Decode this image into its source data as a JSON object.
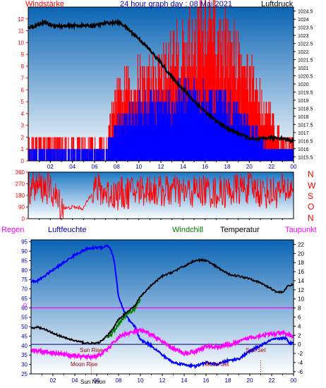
{
  "colors": {
    "wind_max": "#ff0000",
    "wind_avg": "#0000ff",
    "pressure": "#000000",
    "wind_dir": "#ff0000",
    "humidity": "#0000ff",
    "temperature": "#000000",
    "windchill": "#008000",
    "dewpoint": "#ff00ff",
    "frost_line": "#000080",
    "rain_line": "#ff00ff",
    "panel_top": "#0a64b4",
    "panel_bottom": "#ffffff"
  },
  "header": {
    "windstaerke": "Windstärke",
    "title": "24 hour graph day : 08 Mai 2021",
    "luftdruck": "Luftdruck"
  },
  "labels": {
    "regen": "Regen",
    "luftfeuchte": "Luftfeuchte",
    "windchill": "Windchill",
    "temperatur": "Temperatur",
    "taupunkt": "Taupunkt",
    "rain_zero": "0"
  },
  "compass": [
    "N",
    "W",
    "S",
    "O",
    "N"
  ],
  "annotations": {
    "sun_rise": "Sun Rise",
    "moon_rise": "Moon Rise",
    "moon_set": "Moon Set",
    "sun_set": "Sun Set",
    "sun_noon": "Sun Noon"
  },
  "chart_data": [
    {
      "id": "wind-pressure",
      "type": "line",
      "x_ticks": [
        "02",
        "04",
        "06",
        "08",
        "10",
        "12",
        "14",
        "16",
        "18",
        "20",
        "22",
        "00"
      ],
      "x_range_hours": [
        0,
        24
      ],
      "y_left_ticks": [
        "0",
        "1",
        "2",
        "3",
        "4",
        "5",
        "6",
        "7",
        "8",
        "9",
        "10",
        "11",
        "12"
      ],
      "y_left_range": [
        0,
        13
      ],
      "y_right_ticks": [
        "1015.5",
        "1016",
        "1016.5",
        "1017",
        "1017.5",
        "1018",
        "1018.5",
        "1019",
        "1019.5",
        "1020",
        "1020.5",
        "1021",
        "1021.5",
        "1022",
        "1022.5",
        "1023",
        "1023.5",
        "1024",
        "1024.5"
      ],
      "y_right_range": [
        1015.25,
        1024.75
      ],
      "series": [
        {
          "name": "Windstärke",
          "axis": "left",
          "role": "wind_max",
          "style": "bars",
          "x": [
            0,
            1,
            2,
            3,
            4,
            5,
            6,
            7,
            7.5,
            8,
            9,
            10,
            11,
            12,
            13,
            14,
            15,
            16,
            17,
            18,
            19,
            20,
            21,
            22,
            23,
            24
          ],
          "y": [
            2,
            2,
            2,
            2,
            2,
            2,
            2,
            2,
            4,
            6,
            7,
            8,
            8,
            9,
            10,
            11,
            12,
            13,
            12,
            11,
            10,
            8,
            6,
            4,
            2,
            2
          ]
        },
        {
          "name": "",
          "axis": "left",
          "role": "wind_avg",
          "style": "bars",
          "x": [
            0,
            1,
            2,
            3,
            4,
            5,
            6,
            7,
            7.5,
            8,
            9,
            10,
            11,
            12,
            13,
            14,
            15,
            16,
            17,
            18,
            19,
            20,
            21,
            22,
            23,
            24
          ],
          "y": [
            1,
            1,
            1,
            1,
            1,
            1,
            1,
            1,
            2,
            3,
            4,
            5,
            5,
            5,
            5,
            6,
            6,
            6,
            5,
            5,
            4,
            3,
            2,
            1,
            1,
            1
          ]
        },
        {
          "name": "Luftdruck",
          "axis": "right",
          "role": "pressure",
          "style": "line",
          "x": [
            0,
            0.5,
            1,
            1.5,
            2,
            3,
            4,
            5,
            6,
            7,
            8,
            8.5,
            9,
            10,
            11,
            12,
            13,
            14,
            15,
            16,
            17,
            18,
            19,
            20,
            20.5,
            21,
            22,
            23,
            24
          ],
          "y": [
            1023.5,
            1023.55,
            1023.7,
            1023.8,
            1023.65,
            1023.55,
            1023.6,
            1023.6,
            1023.6,
            1023.75,
            1023.8,
            1023.7,
            1023.4,
            1022.8,
            1022.1,
            1021.3,
            1020.4,
            1019.7,
            1018.95,
            1018.3,
            1017.7,
            1017.25,
            1016.95,
            1016.65,
            1016.55,
            1016.6,
            1016.7,
            1016.65,
            1016.45
          ]
        }
      ]
    },
    {
      "id": "wind-direction",
      "type": "line",
      "x_range_hours": [
        0,
        24
      ],
      "y_ticks": [
        "360",
        "270",
        "180",
        "90",
        "0"
      ],
      "y_range": [
        0,
        360
      ],
      "series": [
        {
          "name": "",
          "role": "wind_dir",
          "x": [
            0,
            1,
            2,
            3,
            3.5,
            4,
            5,
            6,
            7,
            8,
            9,
            10,
            11,
            12,
            13,
            14,
            15,
            16,
            17,
            18,
            19,
            20,
            21,
            22,
            23,
            24
          ],
          "y": [
            240,
            250,
            230,
            90,
            80,
            90,
            80,
            240,
            200,
            190,
            200,
            220,
            230,
            210,
            220,
            200,
            210,
            220,
            200,
            210,
            230,
            240,
            210,
            200,
            220,
            230
          ]
        }
      ]
    },
    {
      "id": "climate",
      "type": "line",
      "x_ticks": [
        "02",
        "04",
        "06",
        "08",
        "10",
        "12",
        "14",
        "16",
        "18",
        "20",
        "22",
        "00"
      ],
      "x_range_hours": [
        0,
        24
      ],
      "y_left_ticks": [
        "25",
        "30",
        "35",
        "40",
        "45",
        "50",
        "55",
        "60",
        "65",
        "70",
        "75",
        "80",
        "85",
        "90",
        "95"
      ],
      "y_left_range": [
        25,
        96
      ],
      "y_right_ticks": [
        "-6",
        "-4",
        "-2",
        "0",
        "2",
        "4",
        "6",
        "8",
        "10",
        "12",
        "14",
        "16",
        "18",
        "20",
        "22"
      ],
      "y_right_range": [
        -6.5,
        23
      ],
      "series": [
        {
          "name": "Luftfeuchte",
          "axis": "left",
          "role": "humidity",
          "x": [
            0,
            0.5,
            1,
            2,
            3,
            4,
            5,
            6,
            6.5,
            7,
            7.3,
            7.6,
            8,
            8.5,
            9,
            9.5,
            10,
            11,
            12,
            13,
            14,
            15,
            16,
            17,
            18,
            19,
            20,
            21,
            22,
            23,
            23.3,
            23.6,
            24
          ],
          "y": [
            74,
            74,
            76,
            80,
            84,
            88,
            91,
            92,
            92,
            93,
            91,
            85,
            66,
            58,
            53,
            50,
            43,
            40,
            35,
            31,
            30,
            29,
            31,
            30,
            32,
            33,
            37,
            40,
            43,
            44,
            44,
            41,
            42
          ]
        },
        {
          "name": "Temperatur",
          "axis": "right",
          "role": "temperature",
          "x": [
            0,
            0.5,
            1,
            2,
            3,
            4,
            5,
            6,
            6.5,
            7,
            7.5,
            8,
            8.5,
            9,
            9.5,
            10,
            11,
            12,
            13,
            14,
            15,
            16,
            17,
            18,
            19,
            20,
            21,
            22,
            22.5,
            23,
            23.5,
            24
          ],
          "y": [
            3.5,
            3.8,
            3.5,
            2.5,
            1.5,
            0.8,
            0.3,
            0.2,
            0.8,
            2,
            3.5,
            5.5,
            6.5,
            7.5,
            8.5,
            10.5,
            13,
            15,
            16,
            17.2,
            18.5,
            18.5,
            17,
            15.5,
            15,
            14.5,
            13.5,
            12.2,
            11.5,
            11.5,
            12.8,
            13.2
          ]
        },
        {
          "name": "Windchill",
          "axis": "right",
          "role": "windchill",
          "x": [
            7,
            7.5,
            8,
            8.5,
            9,
            9.5,
            10
          ],
          "y": [
            1.5,
            2.5,
            4.5,
            6,
            7,
            8,
            10
          ]
        },
        {
          "name": "Taupunkt",
          "axis": "right",
          "role": "dewpoint",
          "x": [
            0,
            1,
            2,
            3,
            4,
            5,
            6,
            6.5,
            7,
            7.5,
            8,
            8.5,
            9,
            10,
            11,
            12,
            13,
            14,
            15,
            16,
            17,
            18,
            19,
            20,
            21,
            22,
            23,
            24
          ],
          "y": [
            -1.2,
            -1.5,
            -1.8,
            -2.2,
            -2.5,
            -2.8,
            -2.6,
            -2,
            -1,
            0.2,
            1.5,
            2.2,
            2.5,
            3,
            2.2,
            0.5,
            -1,
            -2,
            -1.5,
            -0.5,
            -0.5,
            -0.2,
            0.5,
            1.5,
            2,
            2.2,
            2.5,
            1.8
          ]
        }
      ]
    }
  ]
}
